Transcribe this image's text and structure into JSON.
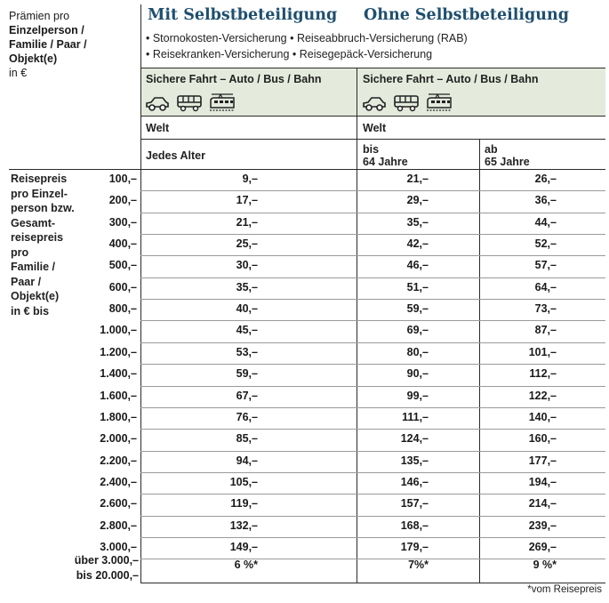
{
  "header": {
    "premien_line1": "Prämien pro",
    "premien_bold": [
      "Einzelperson /",
      "Familie / Paar /",
      "Objekt(e)"
    ],
    "premien_last": "in €",
    "title_mit": "Mit Selbstbeteiligung",
    "title_ohne": "Ohne Selbstbeteiligung",
    "coverage_line1": "• Stornokosten-Versicherung • Reiseabbruch-Versicherung (RAB)",
    "coverage_line2": "• Reisekranken-Versicherung • Reisegepäck-Versicherung"
  },
  "band": {
    "left_label": "Sichere Fahrt – Auto / Bus / Bahn",
    "right_label": "Sichere Fahrt – Auto / Bus / Bahn",
    "icons": [
      "car-icon",
      "bus-icon",
      "train-icon"
    ]
  },
  "region": {
    "left": "Welt",
    "right": "Welt"
  },
  "age": {
    "left": "Jedes Alter",
    "right_bis_1": "bis",
    "right_bis_2": "64 Jahre",
    "right_ab_1": "ab",
    "right_ab_2": "65 Jahre"
  },
  "side_label": [
    "Reisepreis",
    "pro Einzel-",
    "person bzw.",
    "Gesamt-",
    "reisepreis",
    "pro",
    "Familie /",
    "Paar /",
    "Objekt(e)",
    "in € bis"
  ],
  "rows": [
    {
      "amount": "100,–",
      "mit": "9,–",
      "bis64": "21,–",
      "ab65": "26,–"
    },
    {
      "amount": "200,–",
      "mit": "17,–",
      "bis64": "29,–",
      "ab65": "36,–"
    },
    {
      "amount": "300,–",
      "mit": "21,–",
      "bis64": "35,–",
      "ab65": "44,–"
    },
    {
      "amount": "400,–",
      "mit": "25,–",
      "bis64": "42,–",
      "ab65": "52,–"
    },
    {
      "amount": "500,–",
      "mit": "30,–",
      "bis64": "46,–",
      "ab65": "57,–"
    },
    {
      "amount": "600,–",
      "mit": "35,–",
      "bis64": "51,–",
      "ab65": "64,–"
    },
    {
      "amount": "800,–",
      "mit": "40,–",
      "bis64": "59,–",
      "ab65": "73,–"
    },
    {
      "amount": "1.000,–",
      "mit": "45,–",
      "bis64": "69,–",
      "ab65": "87,–"
    },
    {
      "amount": "1.200,–",
      "mit": "53,–",
      "bis64": "80,–",
      "ab65": "101,–"
    },
    {
      "amount": "1.400,–",
      "mit": "59,–",
      "bis64": "90,–",
      "ab65": "112,–"
    },
    {
      "amount": "1.600,–",
      "mit": "67,–",
      "bis64": "99,–",
      "ab65": "122,–"
    },
    {
      "amount": "1.800,–",
      "mit": "76,–",
      "bis64": "111,–",
      "ab65": "140,–"
    },
    {
      "amount": "2.000,–",
      "mit": "85,–",
      "bis64": "124,–",
      "ab65": "160,–"
    },
    {
      "amount": "2.200,–",
      "mit": "94,–",
      "bis64": "135,–",
      "ab65": "177,–"
    },
    {
      "amount": "2.400,–",
      "mit": "105,–",
      "bis64": "146,–",
      "ab65": "194,–"
    },
    {
      "amount": "2.600,–",
      "mit": "119,–",
      "bis64": "157,–",
      "ab65": "214,–"
    },
    {
      "amount": "2.800,–",
      "mit": "132,–",
      "bis64": "168,–",
      "ab65": "239,–"
    },
    {
      "amount": "3.000,–",
      "mit": "149,–",
      "bis64": "179,–",
      "ab65": "269,–"
    }
  ],
  "last_row": {
    "amount_1": "über 3.000,–",
    "amount_2": "bis 20.000,–",
    "mit": "6 %*",
    "bis64": "7%*",
    "ab65": "9 %*"
  },
  "footnote": "*vom Reisepreis",
  "colors": {
    "title": "#1f4f6e",
    "band": "#e4ebdc"
  }
}
